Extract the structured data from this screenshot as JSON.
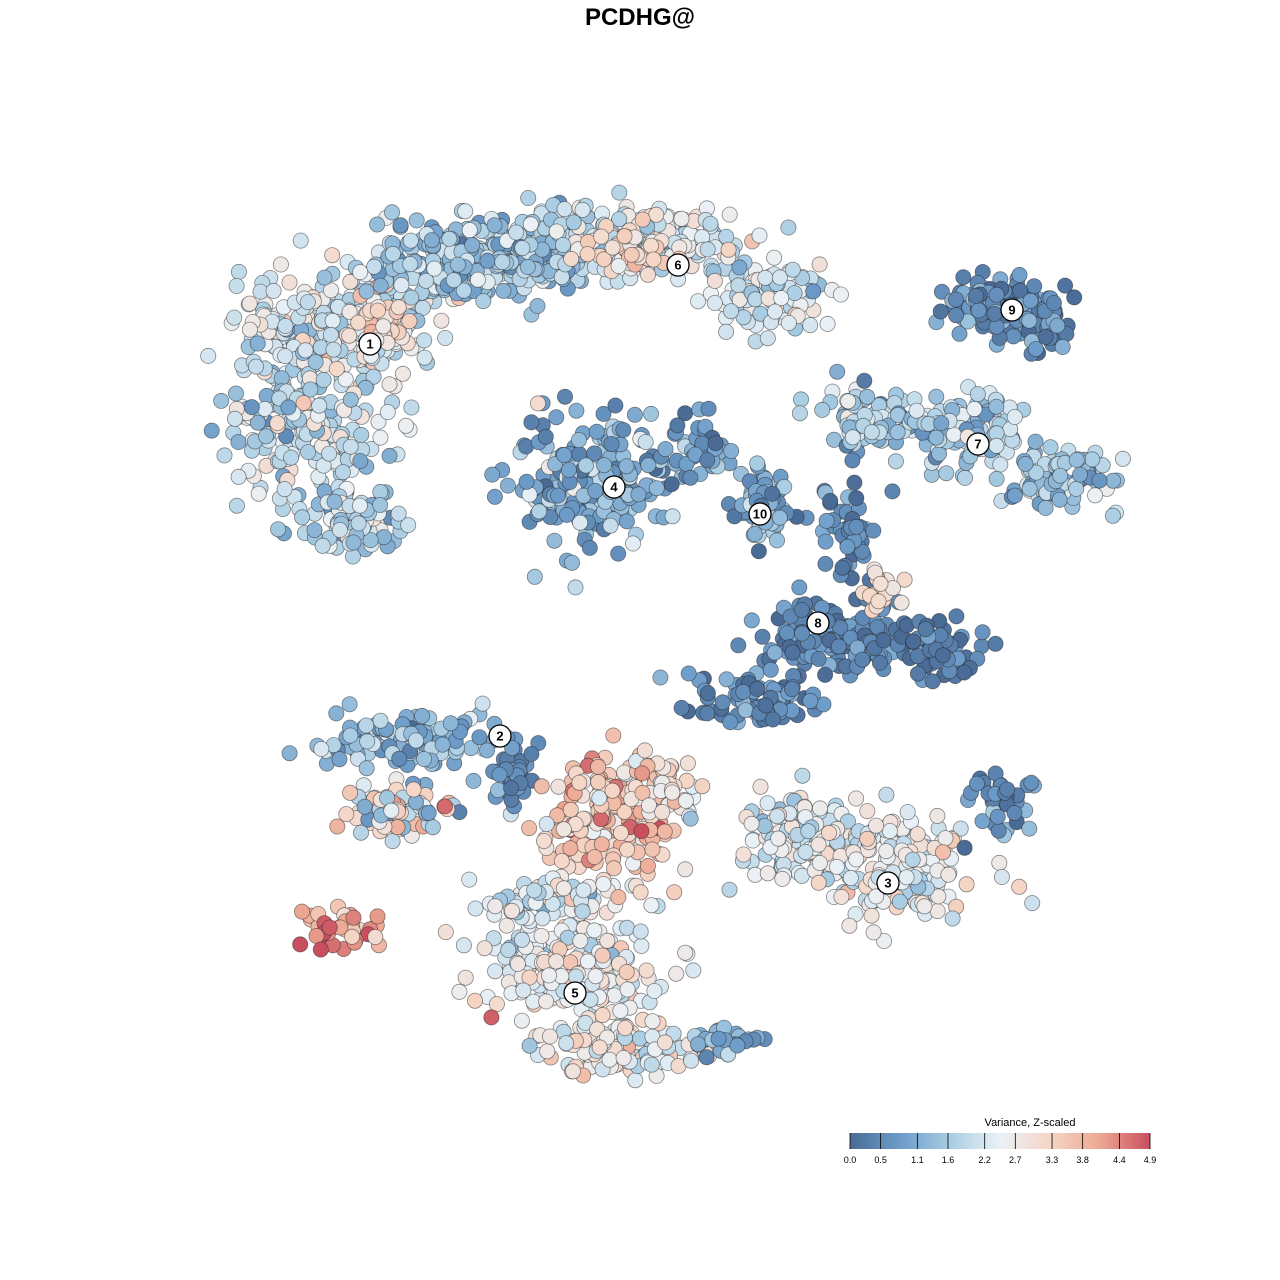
{
  "chart_data": {
    "type": "scatter",
    "title": "PCDHG@",
    "xlabel": "",
    "ylabel": "",
    "color_scale": {
      "title": "Variance, Z-scaled",
      "min": 0.0,
      "max": 4.9,
      "tick_labels": [
        "0.0",
        "0.5",
        "1.1",
        "1.6",
        "2.2",
        "2.7",
        "3.3",
        "3.8",
        "4.4",
        "4.9"
      ],
      "tick_values": [
        0.0,
        0.5,
        1.1,
        1.6,
        2.2,
        2.7,
        3.3,
        3.8,
        4.4,
        4.9
      ],
      "colors": [
        "#4a6b96",
        "#6d9cc9",
        "#a9cde3",
        "#eaf1f6",
        "#f5d6c6",
        "#eca892",
        "#c94f5e"
      ]
    },
    "clusters": [
      {
        "id": "1",
        "x": 370,
        "y": 344,
        "mean_value": 2.4
      },
      {
        "id": "2",
        "x": 500,
        "y": 736,
        "mean_value": 1.3
      },
      {
        "id": "3",
        "x": 888,
        "y": 883,
        "mean_value": 2.4
      },
      {
        "id": "4",
        "x": 614,
        "y": 487,
        "mean_value": 1.2
      },
      {
        "id": "5",
        "x": 575,
        "y": 993,
        "mean_value": 2.5
      },
      {
        "id": "6",
        "x": 678,
        "y": 265,
        "mean_value": 2.2
      },
      {
        "id": "7",
        "x": 978,
        "y": 444,
        "mean_value": 1.6
      },
      {
        "id": "8",
        "x": 818,
        "y": 623,
        "mean_value": 0.5
      },
      {
        "id": "9",
        "x": 1012,
        "y": 310,
        "mean_value": 0.6
      },
      {
        "id": "10",
        "x": 760,
        "y": 514,
        "mean_value": 0.9
      }
    ],
    "x_range": [
      200,
      1130
    ],
    "y_range": [
      185,
      1090
    ],
    "grid": false,
    "legend_position": "bottom-right"
  }
}
